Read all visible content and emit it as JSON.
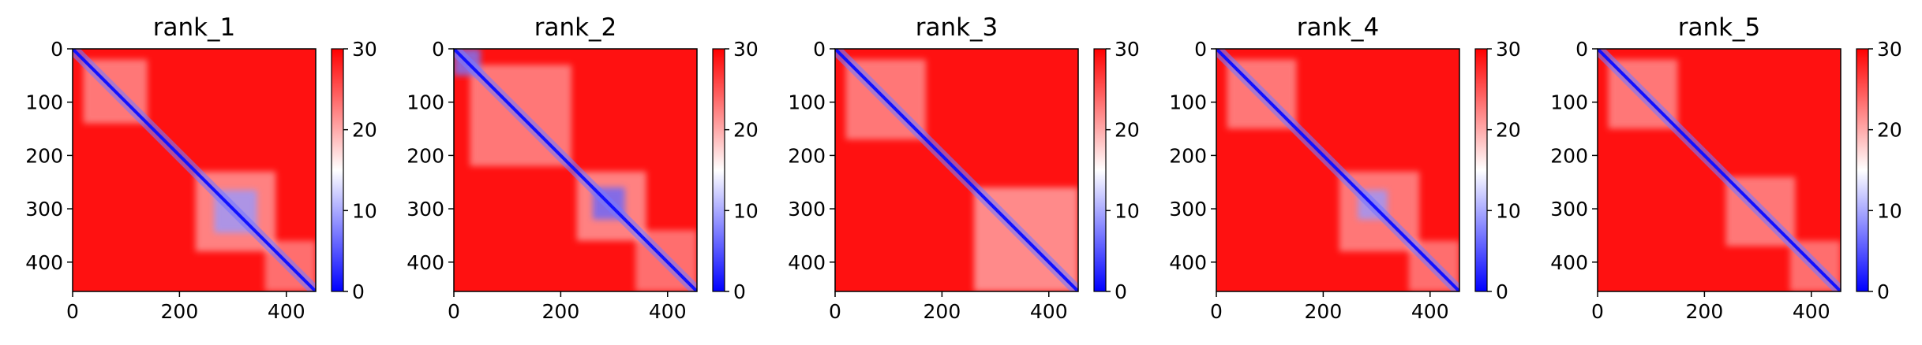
{
  "figure": {
    "colormap": {
      "name": "bwr",
      "low": "#0000ff",
      "mid": "#ffffff",
      "high": "#ff0000"
    }
  },
  "chart_data": [
    {
      "type": "heatmap",
      "title": "rank_1",
      "xlim": [
        0,
        455
      ],
      "ylim": [
        455,
        0
      ],
      "xticks": [
        0,
        200,
        400
      ],
      "yticks": [
        0,
        100,
        200,
        300,
        400
      ],
      "colorbar": {
        "range": [
          0,
          30
        ],
        "ticks": [
          0,
          10,
          20,
          30
        ]
      },
      "background_value": 29,
      "diagonal_value": 1,
      "blue_blocks": [
        {
          "x": [
            265,
            345
          ],
          "y": [
            265,
            345
          ],
          "value": 9
        }
      ],
      "white_blocks": [
        {
          "x": [
            20,
            140
          ],
          "y": [
            20,
            140
          ],
          "value": 18
        },
        {
          "x": [
            230,
            380
          ],
          "y": [
            230,
            380
          ],
          "value": 17
        },
        {
          "x": [
            360,
            455
          ],
          "y": [
            360,
            455
          ],
          "value": 19
        }
      ]
    },
    {
      "type": "heatmap",
      "title": "rank_2",
      "xlim": [
        0,
        455
      ],
      "ylim": [
        455,
        0
      ],
      "xticks": [
        0,
        200,
        400
      ],
      "yticks": [
        0,
        100,
        200,
        300,
        400
      ],
      "colorbar": {
        "range": [
          0,
          30
        ],
        "ticks": [
          0,
          10,
          20,
          30
        ]
      },
      "background_value": 29,
      "diagonal_value": 1,
      "blue_blocks": [
        {
          "x": [
            0,
            50
          ],
          "y": [
            0,
            50
          ],
          "value": 7
        },
        {
          "x": [
            260,
            320
          ],
          "y": [
            260,
            320
          ],
          "value": 6
        }
      ],
      "white_blocks": [
        {
          "x": [
            30,
            220
          ],
          "y": [
            30,
            220
          ],
          "value": 18
        },
        {
          "x": [
            230,
            360
          ],
          "y": [
            230,
            360
          ],
          "value": 17
        },
        {
          "x": [
            340,
            455
          ],
          "y": [
            340,
            455
          ],
          "value": 19
        }
      ]
    },
    {
      "type": "heatmap",
      "title": "rank_3",
      "xlim": [
        0,
        455
      ],
      "ylim": [
        455,
        0
      ],
      "xticks": [
        0,
        200,
        400
      ],
      "yticks": [
        0,
        100,
        200,
        300,
        400
      ],
      "colorbar": {
        "range": [
          0,
          30
        ],
        "ticks": [
          0,
          10,
          20,
          30
        ]
      },
      "background_value": 29,
      "diagonal_value": 1,
      "blue_blocks": [],
      "white_blocks": [
        {
          "x": [
            20,
            170
          ],
          "y": [
            20,
            170
          ],
          "value": 18
        },
        {
          "x": [
            260,
            455
          ],
          "y": [
            260,
            455
          ],
          "value": 16
        }
      ]
    },
    {
      "type": "heatmap",
      "title": "rank_4",
      "xlim": [
        0,
        455
      ],
      "ylim": [
        455,
        0
      ],
      "xticks": [
        0,
        200,
        400
      ],
      "yticks": [
        0,
        100,
        200,
        300,
        400
      ],
      "colorbar": {
        "range": [
          0,
          30
        ],
        "ticks": [
          0,
          10,
          20,
          30
        ]
      },
      "background_value": 29,
      "diagonal_value": 1,
      "blue_blocks": [
        {
          "x": [
            265,
            320
          ],
          "y": [
            265,
            320
          ],
          "value": 9
        }
      ],
      "white_blocks": [
        {
          "x": [
            20,
            150
          ],
          "y": [
            20,
            150
          ],
          "value": 18
        },
        {
          "x": [
            230,
            380
          ],
          "y": [
            230,
            380
          ],
          "value": 18
        },
        {
          "x": [
            360,
            455
          ],
          "y": [
            360,
            455
          ],
          "value": 19
        }
      ]
    },
    {
      "type": "heatmap",
      "title": "rank_5",
      "xlim": [
        0,
        455
      ],
      "ylim": [
        455,
        0
      ],
      "xticks": [
        0,
        200,
        400
      ],
      "yticks": [
        0,
        100,
        200,
        300,
        400
      ],
      "colorbar": {
        "range": [
          0,
          30
        ],
        "ticks": [
          0,
          10,
          20,
          30
        ]
      },
      "background_value": 29,
      "diagonal_value": 1,
      "blue_blocks": [],
      "white_blocks": [
        {
          "x": [
            20,
            150
          ],
          "y": [
            20,
            150
          ],
          "value": 18
        },
        {
          "x": [
            240,
            370
          ],
          "y": [
            240,
            370
          ],
          "value": 18
        },
        {
          "x": [
            360,
            455
          ],
          "y": [
            360,
            455
          ],
          "value": 19
        }
      ]
    }
  ]
}
